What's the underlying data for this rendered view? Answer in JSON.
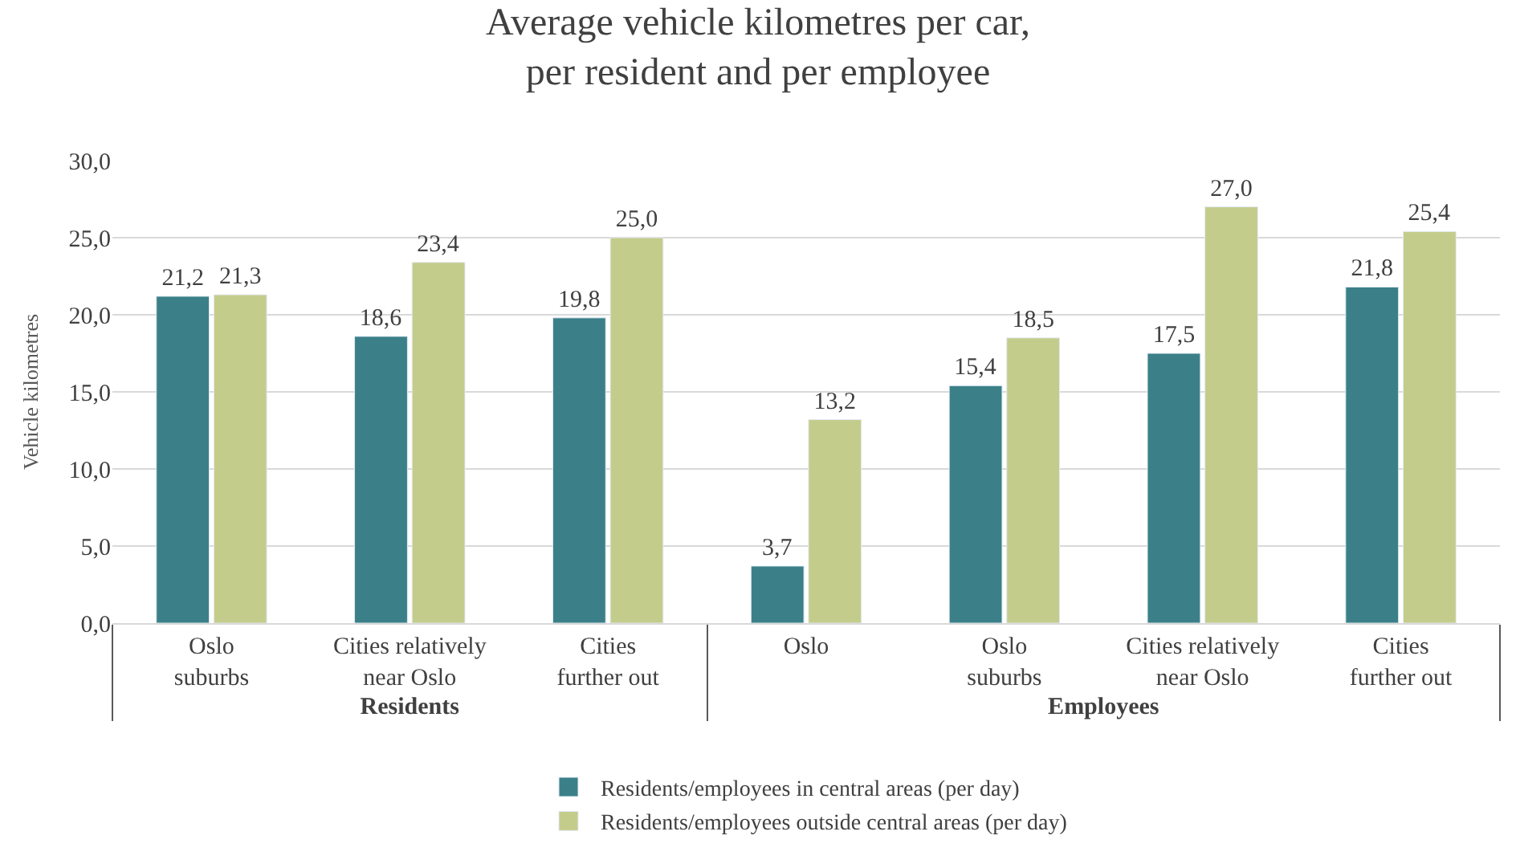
{
  "chart_data": {
    "type": "bar",
    "title": "Average vehicle kilometres per car,\nper resident and per employee",
    "ylabel": "Vehicle kilometres",
    "categories": [
      "Oslo suburbs",
      "Cities relatively near Oslo",
      "Cities further out",
      "Oslo",
      "Oslo suburbs",
      "Cities relatively near Oslo",
      "Cities further out"
    ],
    "series": [
      {
        "name": "Residents/employees in central areas (per day)",
        "color": "#3b8088",
        "values": [
          21.2,
          18.6,
          19.8,
          3.7,
          15.4,
          17.5,
          21.8
        ],
        "value_labels": [
          "21,2",
          "18,6",
          "19,8",
          "3,7",
          "15,4",
          "17,5",
          "21,8"
        ]
      },
      {
        "name": "Residents/employees outside central areas (per day)",
        "color": "#c4cc8c",
        "values": [
          21.3,
          23.4,
          25.0,
          13.2,
          18.5,
          27.0,
          25.4
        ],
        "value_labels": [
          "21,3",
          "23,4",
          "25,0",
          "13,2",
          "18,5",
          "27,0",
          "25,4"
        ]
      }
    ],
    "ylim": [
      0,
      30
    ],
    "yticks": [
      {
        "value": 0,
        "label": "0,0"
      },
      {
        "value": 5,
        "label": "5,0"
      },
      {
        "value": 10,
        "label": "10,0"
      },
      {
        "value": 15,
        "label": "15,0"
      },
      {
        "value": 20,
        "label": "20,0"
      },
      {
        "value": 25,
        "label": "25,0"
      },
      {
        "value": 30,
        "label": "30,0"
      }
    ],
    "grid": "y",
    "legend": "bottom",
    "annotations": [
      "Residents",
      "Employees"
    ]
  }
}
